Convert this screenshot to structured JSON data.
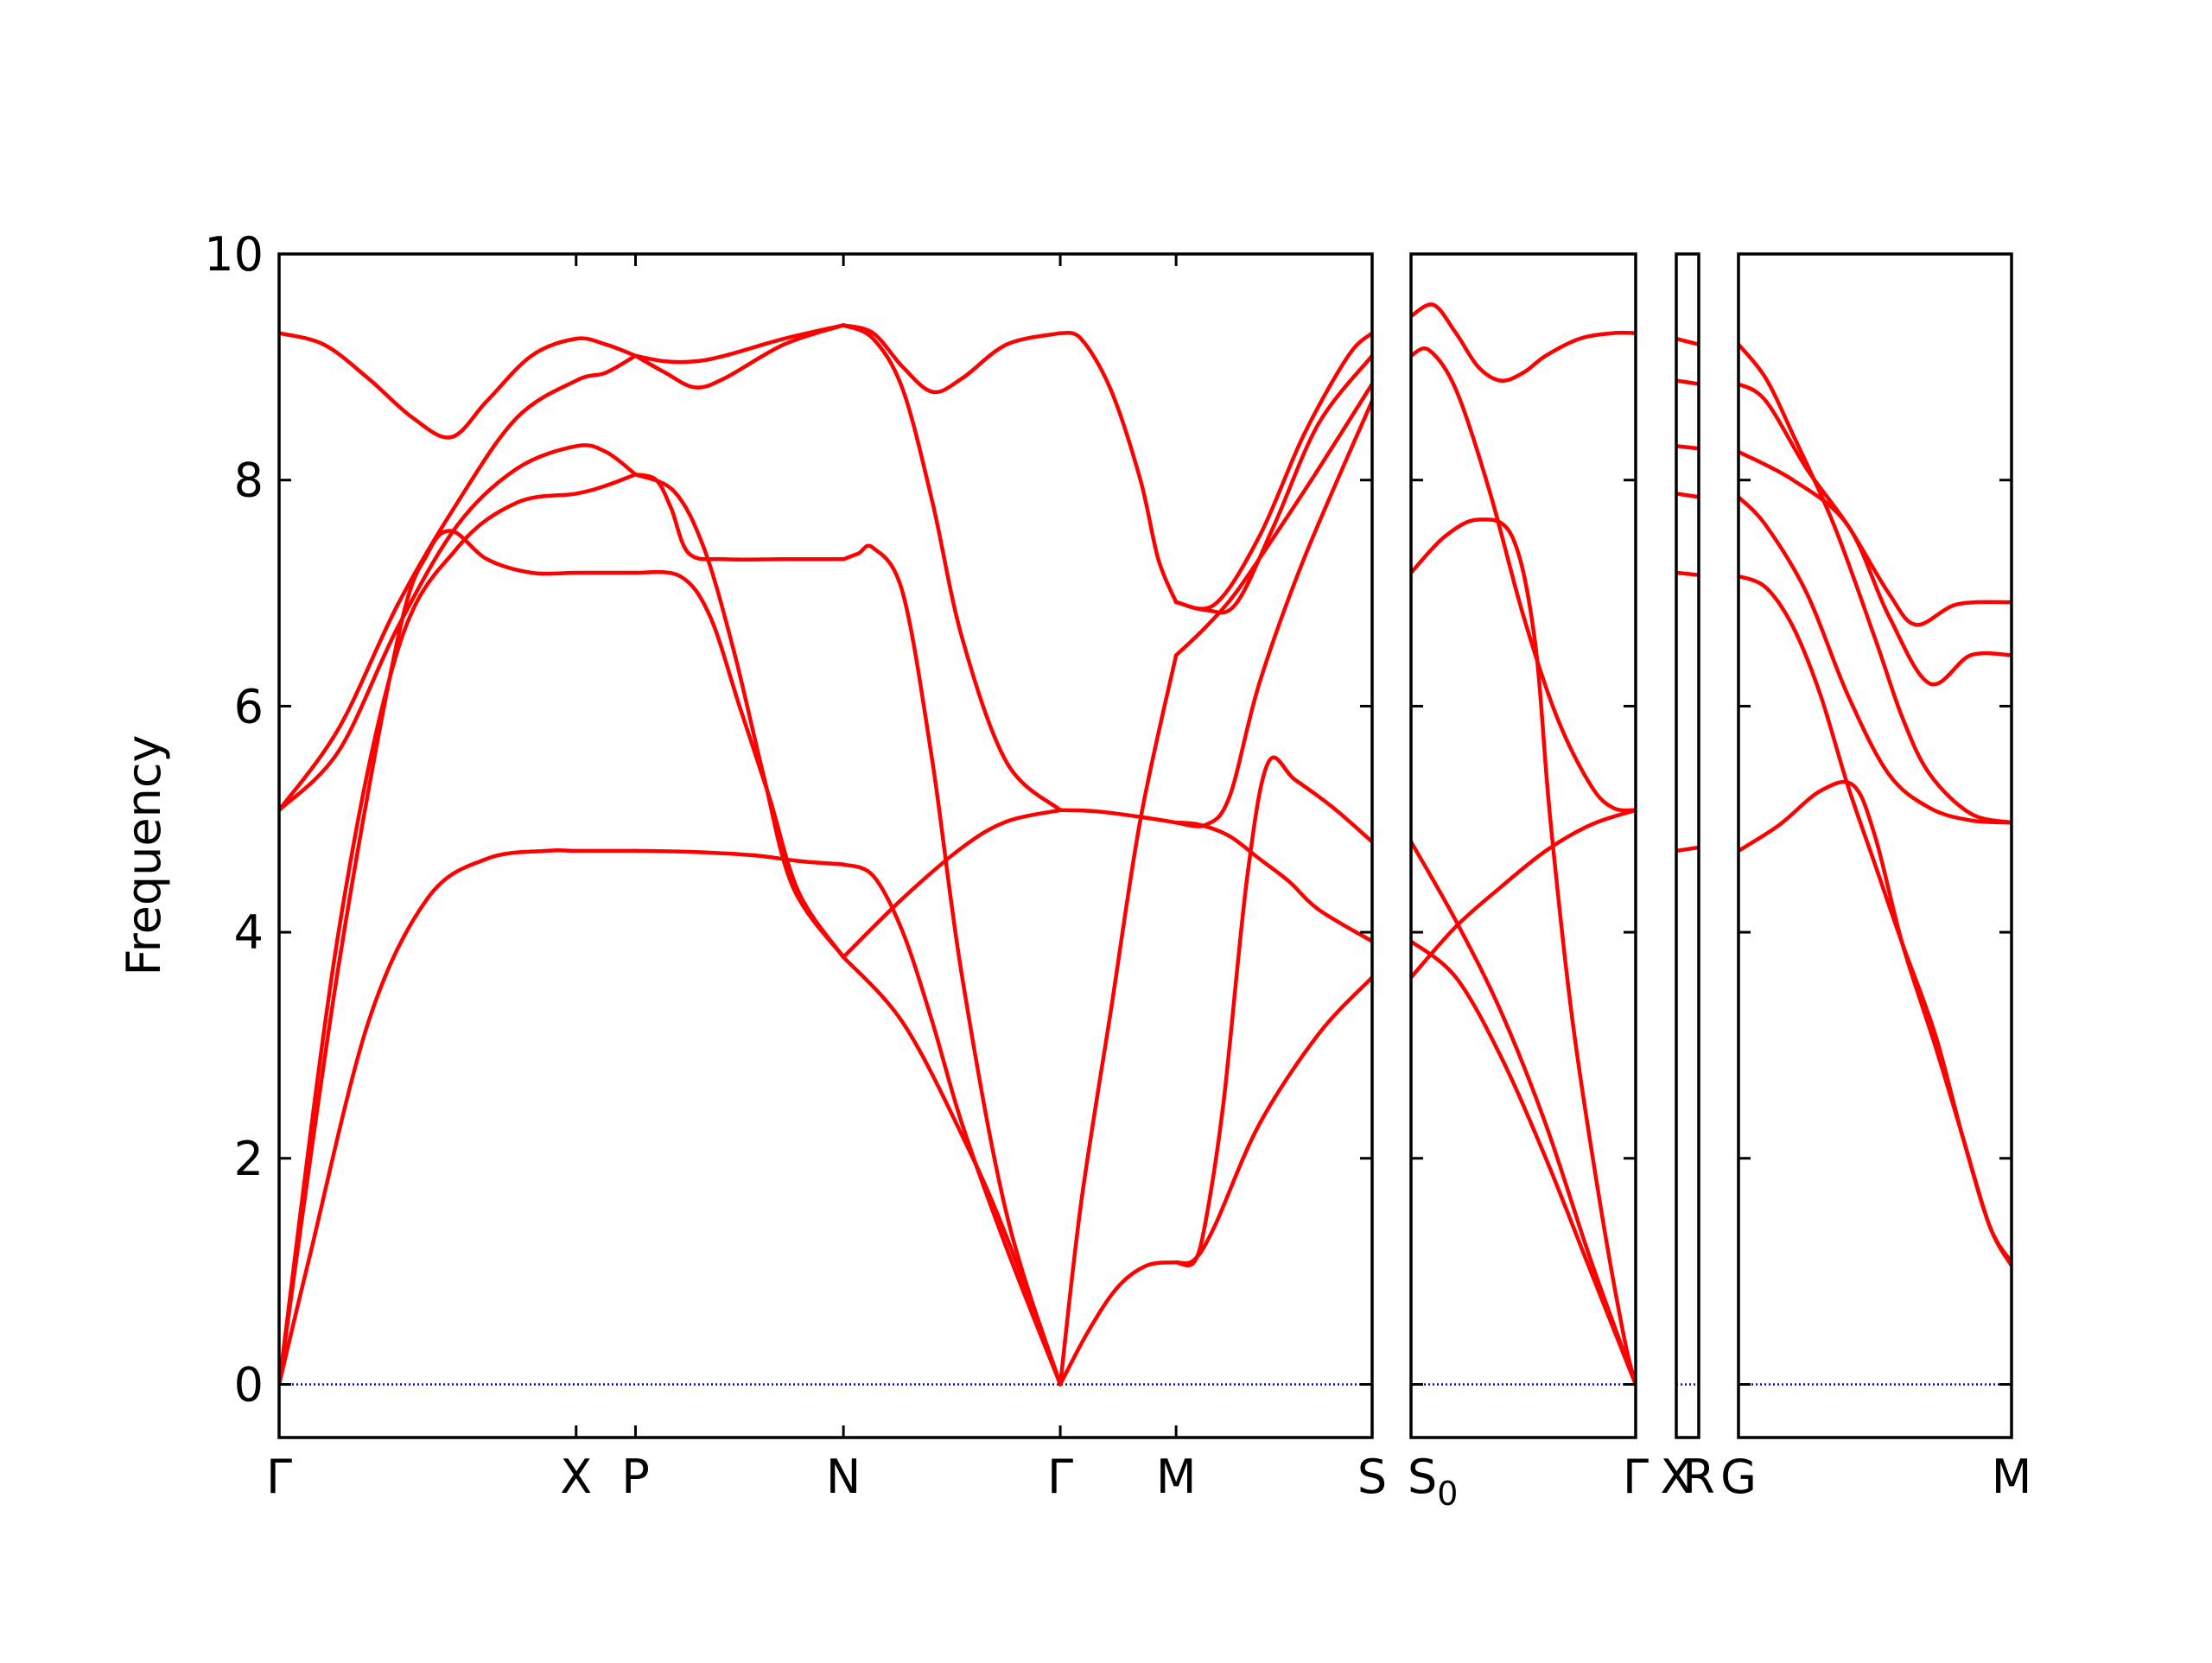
{
  "chart_data": {
    "type": "line",
    "title": "",
    "ylabel": "Frequency",
    "xlabel": "",
    "ylim": [
      -0.47,
      10
    ],
    "y_ticks": [
      0,
      2,
      4,
      6,
      8,
      10
    ],
    "y_tick_labels": [
      "0",
      "2",
      "4",
      "6",
      "8",
      "10"
    ],
    "colors": {
      "bands": "#ff0000",
      "zero_line": "#0000ff",
      "axes": "#000000"
    },
    "zero_line": {
      "y": 0,
      "style": "dotted"
    },
    "panels": [
      {
        "name": "panel-1",
        "path": [
          "Γ",
          "X",
          "P",
          "N",
          "Γ",
          "M",
          "S"
        ],
        "high_symmetry_positions": [
          0,
          1.0,
          1.2,
          1.9,
          2.63,
          3.02,
          3.68
        ],
        "tick_labels": [
          {
            "text": "Γ",
            "x": 0
          },
          {
            "text": "X",
            "x": 1.0
          },
          {
            "text": "P",
            "x": 1.2
          },
          {
            "text": "N",
            "x": 1.9
          },
          {
            "text": "Γ",
            "x": 2.63
          },
          {
            "text": "M",
            "x": 3.02
          },
          {
            "text": "S",
            "x": 3.68
          }
        ],
        "bands": [
          {
            "x": [
              0,
              0.2,
              0.4,
              0.5,
              0.58,
              0.7,
              0.85,
              1.0,
              1.1,
              1.2
            ],
            "y": [
              0,
              3.7,
              6.6,
              7.35,
              7.55,
              7.3,
              7.18,
              7.18,
              7.18,
              7.18
            ]
          },
          {
            "x": [
              0,
              0.2,
              0.4,
              0.6,
              0.8,
              1.0,
              1.1,
              1.2
            ],
            "y": [
              0,
              4.0,
              6.5,
              7.4,
              7.8,
              7.88,
              7.95,
              8.05
            ]
          },
          {
            "x": [
              0,
              0.1,
              0.3,
              0.5,
              0.7,
              0.9,
              1.0,
              1.1,
              1.2
            ],
            "y": [
              0,
              1.1,
              3.2,
              4.3,
              4.65,
              4.72,
              4.72,
              4.72,
              4.72
            ]
          },
          {
            "x": [
              0,
              0.2,
              0.4,
              0.6,
              0.8,
              1.0,
              1.1,
              1.2
            ],
            "y": [
              5.08,
              5.6,
              6.7,
              7.6,
              8.1,
              8.3,
              8.25,
              8.05
            ]
          },
          {
            "x": [
              0,
              0.2,
              0.4,
              0.6,
              0.8,
              1.0,
              1.1,
              1.2
            ],
            "y": [
              5.08,
              5.8,
              6.9,
              7.8,
              8.55,
              8.88,
              8.95,
              9.1
            ]
          },
          {
            "x": [
              0,
              0.15,
              0.3,
              0.45,
              0.58,
              0.7,
              0.85,
              1.0,
              1.1,
              1.2
            ],
            "y": [
              9.3,
              9.2,
              8.9,
              8.55,
              8.38,
              8.7,
              9.1,
              9.25,
              9.2,
              9.1
            ]
          },
          {
            "x": [
              1.2,
              1.3,
              1.4,
              1.5,
              1.7,
              1.9
            ],
            "y": [
              9.1,
              9.05,
              9.05,
              9.1,
              9.25,
              9.37
            ]
          },
          {
            "x": [
              1.2,
              1.3,
              1.4,
              1.5,
              1.7,
              1.9
            ],
            "y": [
              9.1,
              8.95,
              8.82,
              8.9,
              9.2,
              9.37
            ]
          },
          {
            "x": [
              1.2,
              1.27,
              1.32,
              1.38,
              1.5,
              1.7,
              1.9
            ],
            "y": [
              8.05,
              8.0,
              7.75,
              7.35,
              7.3,
              7.3,
              7.3
            ]
          },
          {
            "x": [
              1.2,
              1.35,
              1.45,
              1.55,
              1.65,
              1.75,
              1.9
            ],
            "y": [
              7.18,
              7.15,
              6.8,
              6.0,
              5.2,
              4.35,
              3.78
            ]
          },
          {
            "x": [
              1.2,
              1.33,
              1.43,
              1.53,
              1.63,
              1.73,
              1.9
            ],
            "y": [
              8.05,
              7.9,
              7.4,
              6.5,
              5.4,
              4.4,
              3.78
            ]
          },
          {
            "x": [
              1.2,
              1.4,
              1.6,
              1.75,
              1.9
            ],
            "y": [
              4.72,
              4.71,
              4.68,
              4.63,
              4.6
            ]
          },
          {
            "x": [
              1.9,
              2.0,
              2.1,
              2.2,
              2.3,
              2.45,
              2.63
            ],
            "y": [
              9.37,
              9.3,
              9.0,
              8.78,
              8.9,
              9.2,
              9.3
            ]
          },
          {
            "x": [
              1.9,
              2.0,
              2.1,
              2.2,
              2.3,
              2.45,
              2.63
            ],
            "y": [
              9.37,
              9.25,
              8.8,
              7.8,
              6.6,
              5.5,
              5.08
            ]
          },
          {
            "x": [
              1.9,
              1.95,
              2.0,
              2.1,
              2.2,
              2.3,
              2.45,
              2.63
            ],
            "y": [
              7.3,
              7.35,
              7.4,
              7.0,
              5.5,
              3.6,
              1.5,
              0
            ]
          },
          {
            "x": [
              1.9,
              2.0,
              2.1,
              2.2,
              2.3,
              2.45,
              2.63
            ],
            "y": [
              4.6,
              4.5,
              4.0,
              3.2,
              2.3,
              1.2,
              0
            ]
          },
          {
            "x": [
              1.9,
              2.1,
              2.3,
              2.45,
              2.63
            ],
            "y": [
              3.78,
              3.2,
              2.2,
              1.3,
              0
            ]
          },
          {
            "x": [
              1.9,
              2.1,
              2.3,
              2.45,
              2.63
            ],
            "y": [
              3.78,
              4.3,
              4.75,
              4.98,
              5.08
            ]
          },
          {
            "x": [
              2.63,
              2.7,
              2.8,
              2.9,
              2.96,
              3.02
            ],
            "y": [
              9.3,
              9.25,
              8.8,
              8.0,
              7.3,
              6.92
            ]
          },
          {
            "x": [
              2.63,
              2.75,
              2.9,
              3.02
            ],
            "y": [
              5.08,
              5.07,
              5.02,
              4.97
            ]
          },
          {
            "x": [
              2.63,
              2.7,
              2.8,
              2.9,
              3.02
            ],
            "y": [
              0,
              1.6,
              3.3,
              5.0,
              6.45
            ]
          },
          {
            "x": [
              2.63,
              2.72,
              2.82,
              2.92,
              3.02
            ],
            "y": [
              0,
              0.45,
              0.85,
              1.05,
              1.08
            ]
          },
          {
            "x": [
              3.02,
              3.15,
              3.3,
              3.45,
              3.6,
              3.68
            ],
            "y": [
              6.92,
              6.9,
              7.5,
              8.4,
              9.1,
              9.3
            ]
          },
          {
            "x": [
              3.02,
              3.12,
              3.22,
              3.35,
              3.5,
              3.68
            ],
            "y": [
              6.92,
              6.85,
              6.9,
              7.6,
              8.5,
              9.1
            ]
          },
          {
            "x": [
              3.02,
              3.12,
              3.22,
              3.35,
              3.5,
              3.68
            ],
            "y": [
              6.45,
              6.7,
              7.0,
              7.5,
              8.1,
              8.85
            ]
          },
          {
            "x": [
              3.02,
              3.12,
              3.2,
              3.3,
              3.45,
              3.68
            ],
            "y": [
              4.97,
              4.95,
              5.2,
              6.2,
              7.3,
              8.7
            ]
          },
          {
            "x": [
              3.02,
              3.1,
              3.2,
              3.3,
              3.4,
              3.5,
              3.68
            ],
            "y": [
              4.97,
              4.95,
              4.85,
              4.65,
              4.45,
              4.2,
              3.92
            ]
          },
          {
            "x": [
              3.02,
              3.08,
              3.12,
              3.18,
              3.26,
              3.33,
              3.42,
              3.55,
              3.68
            ],
            "y": [
              1.08,
              1.08,
              1.45,
              2.5,
              4.5,
              5.5,
              5.35,
              5.1,
              4.8
            ]
          },
          {
            "x": [
              3.02,
              3.08,
              3.15,
              3.3,
              3.5,
              3.68
            ],
            "y": [
              1.08,
              1.1,
              1.4,
              2.3,
              3.1,
              3.6
            ]
          }
        ]
      },
      {
        "name": "panel-2",
        "path": [
          "S₀",
          "Γ"
        ],
        "high_symmetry_positions": [
          0,
          1.0
        ],
        "tick_labels": [
          {
            "text": "S",
            "sub": "0",
            "x": 0
          },
          {
            "text": "Γ",
            "x": 1.0
          }
        ],
        "bands": [
          {
            "x": [
              0,
              0.1,
              0.2,
              0.3,
              0.4,
              0.5,
              0.6,
              0.75,
              0.9,
              1.0
            ],
            "y": [
              9.45,
              9.55,
              9.3,
              9.0,
              8.88,
              8.95,
              9.1,
              9.25,
              9.3,
              9.3
            ]
          },
          {
            "x": [
              0,
              0.08,
              0.2,
              0.35,
              0.5,
              0.65,
              0.8,
              0.9,
              1.0
            ],
            "y": [
              9.1,
              9.15,
              8.8,
              7.9,
              6.8,
              5.9,
              5.3,
              5.1,
              5.08
            ]
          },
          {
            "x": [
              0,
              0.15,
              0.3,
              0.45,
              0.55,
              0.62,
              0.72,
              0.85,
              0.95,
              1.0
            ],
            "y": [
              7.18,
              7.5,
              7.65,
              7.5,
              6.6,
              5.0,
              3.2,
              1.5,
              0.4,
              0
            ]
          },
          {
            "x": [
              0,
              0.2,
              0.4,
              0.6,
              0.8,
              1.0
            ],
            "y": [
              4.8,
              4.1,
              3.3,
              2.3,
              1.1,
              0
            ]
          },
          {
            "x": [
              0,
              0.2,
              0.4,
              0.6,
              0.8,
              1.0
            ],
            "y": [
              3.92,
              3.6,
              2.9,
              2.0,
              1.0,
              0
            ]
          },
          {
            "x": [
              0,
              0.2,
              0.4,
              0.6,
              0.8,
              1.0
            ],
            "y": [
              3.6,
              4.05,
              4.4,
              4.72,
              4.95,
              5.08
            ]
          }
        ]
      },
      {
        "name": "panel-3",
        "path": [
          "X",
          "R"
        ],
        "high_symmetry_positions": [
          0,
          1.0
        ],
        "tick_labels": [
          {
            "text": "X",
            "x": 0
          },
          {
            "text": "R",
            "x": 1.0
          }
        ],
        "bands": [
          {
            "x": [
              0,
              1.0
            ],
            "y": [
              9.25,
              9.2
            ]
          },
          {
            "x": [
              0,
              1.0
            ],
            "y": [
              8.88,
              8.85
            ]
          },
          {
            "x": [
              0,
              1.0
            ],
            "y": [
              8.3,
              8.28
            ]
          },
          {
            "x": [
              0,
              1.0
            ],
            "y": [
              7.88,
              7.85
            ]
          },
          {
            "x": [
              0,
              1.0
            ],
            "y": [
              7.18,
              7.16
            ]
          },
          {
            "x": [
              0,
              1.0
            ],
            "y": [
              4.72,
              4.75
            ]
          }
        ]
      },
      {
        "name": "panel-4",
        "path": [
          "G",
          "M"
        ],
        "high_symmetry_positions": [
          0,
          1.0
        ],
        "tick_labels": [
          {
            "text": "G",
            "x": 0
          },
          {
            "text": "M",
            "x": 1.0
          }
        ],
        "bands": [
          {
            "x": [
              0,
              0.1,
              0.2,
              0.35,
              0.5,
              0.6,
              0.7,
              0.85,
              1.0
            ],
            "y": [
              9.2,
              8.9,
              8.4,
              7.6,
              6.6,
              5.9,
              5.4,
              5.05,
              4.97
            ]
          },
          {
            "x": [
              0,
              0.1,
              0.25,
              0.4,
              0.55,
              0.65,
              0.8,
              1.0
            ],
            "y": [
              8.85,
              8.7,
              8.1,
              7.6,
              7.0,
              6.72,
              6.9,
              6.92
            ]
          },
          {
            "x": [
              0,
              0.2,
              0.4,
              0.55,
              0.7,
              0.85,
              1.0
            ],
            "y": [
              8.25,
              8.0,
              7.6,
              6.8,
              6.2,
              6.45,
              6.45
            ]
          },
          {
            "x": [
              0,
              0.1,
              0.25,
              0.4,
              0.55,
              0.7,
              0.85,
              1.0
            ],
            "y": [
              7.85,
              7.6,
              7.0,
              6.1,
              5.4,
              5.1,
              4.99,
              4.97
            ]
          },
          {
            "x": [
              0,
              0.1,
              0.2,
              0.3,
              0.4,
              0.5,
              0.6,
              0.72,
              0.82,
              0.92,
              1.0
            ],
            "y": [
              7.15,
              7.05,
              6.7,
              6.1,
              5.3,
              4.6,
              3.9,
              3.1,
              2.2,
              1.4,
              1.08
            ]
          },
          {
            "x": [
              0,
              0.15,
              0.3,
              0.42,
              0.5,
              0.6,
              0.72,
              0.82,
              0.92,
              1.0
            ],
            "y": [
              4.72,
              4.95,
              5.25,
              5.3,
              4.85,
              3.9,
              3.0,
              2.2,
              1.4,
              1.05
            ]
          }
        ]
      }
    ]
  }
}
